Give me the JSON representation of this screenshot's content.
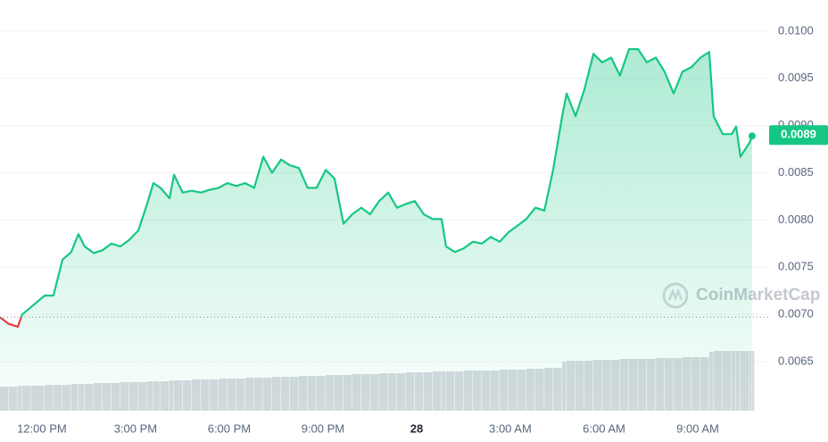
{
  "chart_data": {
    "type": "line",
    "x": [
      10.66,
      10.94,
      11.23,
      11.37,
      11.66,
      12.09,
      12.37,
      12.66,
      12.94,
      13.17,
      13.37,
      13.66,
      13.94,
      14.23,
      14.51,
      14.8,
      15.09,
      15.37,
      15.57,
      15.8,
      16.09,
      16.23,
      16.51,
      16.8,
      17.09,
      17.37,
      17.66,
      17.94,
      18.23,
      18.51,
      18.8,
      19.09,
      19.37,
      19.66,
      19.94,
      20.23,
      20.51,
      20.8,
      21.09,
      21.37,
      21.66,
      21.94,
      22.23,
      22.51,
      22.8,
      23.09,
      23.37,
      23.66,
      23.94,
      24.23,
      24.51,
      24.8,
      24.94,
      25.23,
      25.51,
      25.8,
      26.09,
      26.37,
      26.66,
      26.94,
      27.23,
      27.51,
      27.8,
      28.09,
      28.37,
      28.66,
      28.8,
      29.09,
      29.37,
      29.66,
      29.94,
      30.23,
      30.51,
      30.8,
      31.09,
      31.37,
      31.66,
      31.94,
      32.23,
      32.51,
      32.8,
      33.09,
      33.37,
      33.51,
      33.8,
      34.09,
      34.23,
      34.37,
      34.66,
      34.74
    ],
    "series": [
      {
        "color": "#16c784",
        "values": [
          0.00697,
          0.0069,
          0.00687,
          0.007,
          0.00708,
          0.0072,
          0.0072,
          0.00758,
          0.00766,
          0.00785,
          0.00772,
          0.00765,
          0.00768,
          0.00775,
          0.00772,
          0.00779,
          0.00789,
          0.00817,
          0.00839,
          0.00834,
          0.00823,
          0.00848,
          0.00829,
          0.00831,
          0.00829,
          0.00832,
          0.00834,
          0.00839,
          0.00836,
          0.00839,
          0.00834,
          0.00867,
          0.0085,
          0.00864,
          0.00858,
          0.00855,
          0.00834,
          0.00834,
          0.00853,
          0.00844,
          0.00796,
          0.00806,
          0.00813,
          0.00806,
          0.0082,
          0.00829,
          0.00813,
          0.00817,
          0.0082,
          0.00806,
          0.00801,
          0.00801,
          0.00772,
          0.00766,
          0.0077,
          0.00777,
          0.00775,
          0.00782,
          0.00777,
          0.00787,
          0.00794,
          0.00801,
          0.00813,
          0.0081,
          0.00853,
          0.0091,
          0.00934,
          0.0091,
          0.00938,
          0.00976,
          0.00967,
          0.00972,
          0.00953,
          0.00981,
          0.00981,
          0.00967,
          0.00972,
          0.00957,
          0.00934,
          0.00957,
          0.00962,
          0.00972,
          0.00978,
          0.0091,
          0.00891,
          0.00891,
          0.00899,
          0.00867,
          0.00882,
          0.00889
        ]
      }
    ],
    "down_color": "#ea3943",
    "baseline": 0.00697,
    "current_price": 0.0089,
    "volume": {
      "color": "#d6d9de",
      "lim": [
        0,
        100
      ],
      "values": [
        27,
        27,
        28,
        28,
        28,
        29,
        29,
        29,
        30,
        30,
        30,
        31,
        31,
        31,
        32,
        32,
        32,
        33,
        33,
        33,
        34,
        34,
        34,
        35,
        35,
        35,
        36,
        36,
        36,
        37,
        37,
        37,
        38,
        38,
        38,
        39,
        39,
        39,
        40,
        40,
        40,
        41,
        41,
        41,
        42,
        42,
        42,
        43,
        43,
        43,
        44,
        44,
        44,
        44,
        45,
        45,
        45,
        45,
        46,
        46,
        46,
        47,
        47,
        48,
        48,
        55,
        56,
        56,
        56,
        57,
        57,
        57,
        58,
        58,
        58,
        58,
        59,
        59,
        59,
        60,
        60,
        60,
        66,
        67,
        67,
        67,
        67,
        67,
        67,
        67
      ]
    },
    "xlim": [
      10.66,
      35.0
    ],
    "xticks": [
      {
        "value": 12,
        "label": "12:00 PM"
      },
      {
        "value": 15,
        "label": "3:00 PM"
      },
      {
        "value": 18,
        "label": "6:00 PM"
      },
      {
        "value": 21,
        "label": "9:00 PM"
      },
      {
        "value": 24,
        "label": "28"
      },
      {
        "value": 27,
        "label": "3:00 AM"
      },
      {
        "value": 30,
        "label": "6:00 AM"
      },
      {
        "value": 33,
        "label": "9:00 AM"
      }
    ],
    "ylim": [
      0.00598,
      0.01033
    ],
    "yticks": [
      {
        "value": 0.0065,
        "label": "0.0065"
      },
      {
        "value": 0.007,
        "label": "0.0070"
      },
      {
        "value": 0.0075,
        "label": "0.0075"
      },
      {
        "value": 0.008,
        "label": "0.0080"
      },
      {
        "value": 0.0085,
        "label": "0.0085"
      },
      {
        "value": 0.009,
        "label": "0.0090"
      },
      {
        "value": 0.0095,
        "label": "0.0095"
      },
      {
        "value": 0.01,
        "label": "0.0100"
      }
    ],
    "grid": true,
    "watermark": "CoinMarketCap"
  }
}
